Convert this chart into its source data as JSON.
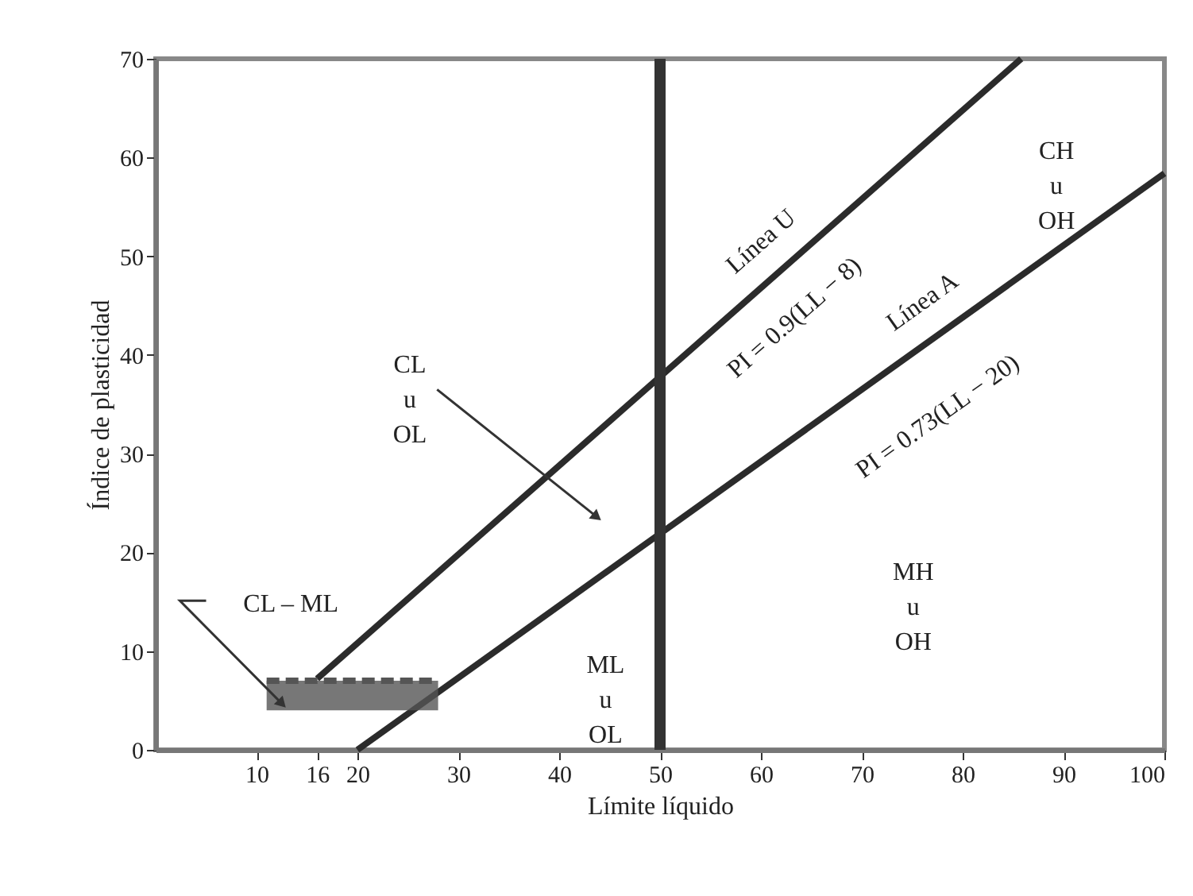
{
  "chart_data": {
    "type": "line",
    "xlabel": "Límite líquido",
    "ylabel": "Índice de plasticidad",
    "xlim": [
      0,
      100
    ],
    "ylim": [
      0,
      70
    ],
    "xticks": [
      10,
      16,
      20,
      30,
      40,
      50,
      60,
      70,
      80,
      90,
      100
    ],
    "yticks": [
      0,
      10,
      20,
      30,
      40,
      50,
      60,
      70
    ],
    "series": [
      {
        "color": "#2b2b2b",
        "x": [
          16,
          85.8
        ],
        "values": [
          7.2,
          70
        ]
      },
      {
        "color": "#2b2b2b",
        "x": [
          20,
          100
        ],
        "values": [
          0,
          58.4
        ]
      },
      {
        "color": "#555555",
        "x": [
          11,
          28
        ],
        "values": [
          7,
          7
        ],
        "lower": [
          4,
          4
        ],
        "upper": [
          7,
          7
        ],
        "line_style": "dashed"
      }
    ],
    "ref_lines": [
      {
        "axis": "x",
        "value": 50,
        "color": "#333333"
      }
    ],
    "annotations": [
      "CL\nu\nOL",
      "CL – ML",
      "ML\nu\nOL",
      "MH\nu\nOH",
      "CH\nu\nOH",
      "Línea U",
      "PI = 0.9(LL − 8)",
      "Línea A",
      "PI = 0.73(LL − 20)"
    ],
    "grid": false,
    "marker": "none"
  }
}
